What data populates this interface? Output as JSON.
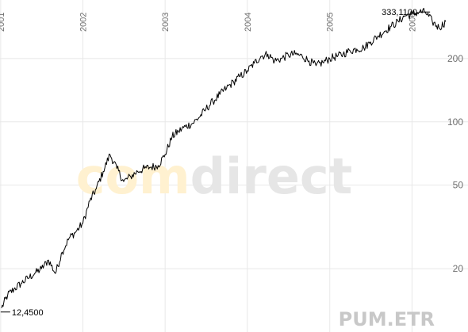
{
  "chart_data": {
    "type": "line",
    "title": "",
    "xlabel": "",
    "ylabel": "",
    "y_scale": "log",
    "ylim": [
      10,
      380
    ],
    "xlim": [
      "2000-12-29",
      "2006-05-31"
    ],
    "grid": true,
    "x_tick_labels": [
      "2001",
      "2002",
      "2003",
      "2004",
      "2005",
      "2006"
    ],
    "y_ticks": [
      20,
      50,
      100,
      200
    ],
    "y_tick_labels": [
      "20",
      "50",
      "100",
      "200"
    ],
    "annotations": {
      "low": {
        "text": "12,4500",
        "date": "2001-01-08",
        "value": 12.45
      },
      "high": {
        "text": "333,1100",
        "date": "2006-03-01",
        "value": 333.11
      }
    },
    "ticker_label": "PUM.ETR",
    "series": [
      {
        "x": [
          "2001-01-05",
          "2001-02-01",
          "2001-03-01",
          "2001-04-01",
          "2001-05-01",
          "2001-06-01",
          "2001-07-01",
          "2001-08-01",
          "2001-09-01",
          "2001-10-01",
          "2001-11-01",
          "2001-12-01",
          "2002-01-01",
          "2002-02-01",
          "2002-03-01",
          "2002-04-01",
          "2002-05-01",
          "2002-06-01",
          "2002-07-01",
          "2002-08-01",
          "2002-09-01",
          "2002-10-01",
          "2002-11-01",
          "2002-12-01",
          "2003-01-01",
          "2003-02-01",
          "2003-03-01",
          "2003-04-01",
          "2003-05-01",
          "2003-06-01",
          "2003-07-01",
          "2003-08-01",
          "2003-09-01",
          "2003-10-01",
          "2003-11-01",
          "2003-12-01",
          "2004-01-01",
          "2004-02-01",
          "2004-03-01",
          "2004-04-01",
          "2004-05-01",
          "2004-06-01",
          "2004-07-01",
          "2004-08-01",
          "2004-09-01",
          "2004-10-01",
          "2004-11-01",
          "2004-12-01",
          "2005-01-01",
          "2005-02-01",
          "2005-03-01",
          "2005-04-01",
          "2005-05-01",
          "2005-06-01",
          "2005-07-01",
          "2005-08-01",
          "2005-09-01",
          "2005-10-01",
          "2005-11-01",
          "2005-12-01",
          "2006-01-01",
          "2006-02-01",
          "2006-03-01",
          "2006-04-01",
          "2006-05-01",
          "2006-05-31"
        ],
        "values": [
          13,
          15,
          16,
          17,
          18,
          19,
          20,
          22,
          19,
          24,
          28,
          30,
          33,
          42,
          48,
          58,
          70,
          60,
          52,
          55,
          58,
          60,
          61,
          62,
          70,
          85,
          90,
          95,
          98,
          105,
          115,
          125,
          135,
          145,
          155,
          165,
          175,
          190,
          205,
          210,
          195,
          200,
          208,
          210,
          205,
          195,
          185,
          192,
          200,
          205,
          210,
          218,
          222,
          225,
          240,
          255,
          270,
          285,
          300,
          320,
          325,
          333,
          333,
          300,
          280,
          300
        ]
      }
    ]
  },
  "watermark": {
    "part1": "com",
    "part2": "direct",
    "color1": "#fff1d0",
    "color2": "#e6e6e6"
  },
  "colors": {
    "line": "#000000",
    "grid": "#e8e8e8",
    "axis_text": "#6f6f6f"
  }
}
